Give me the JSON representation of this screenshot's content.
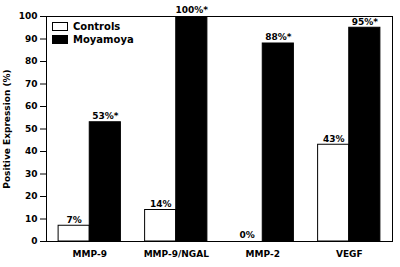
{
  "chart_data": {
    "type": "bar",
    "y_label": "Positive Expression (%)",
    "categories": [
      "MMP-9",
      "MMP-9/NGAL",
      "MMP-2",
      "VEGF"
    ],
    "series": [
      {
        "name": "Controls",
        "color": "#ffffff",
        "values": [
          7,
          14,
          0,
          43
        ],
        "value_labels": [
          "7%",
          "14%",
          "0%",
          "43%"
        ]
      },
      {
        "name": "Moyamoya",
        "color": "#000000",
        "values": [
          53,
          100,
          88,
          95
        ],
        "value_labels": [
          "53%*",
          "100%*",
          "88%*",
          "95%*"
        ]
      }
    ],
    "ylim": [
      0,
      100
    ],
    "yticks": [
      0,
      10,
      20,
      30,
      40,
      50,
      60,
      70,
      80,
      90,
      100
    ],
    "grid": false,
    "legend": "top-left",
    "data_labels": true
  }
}
